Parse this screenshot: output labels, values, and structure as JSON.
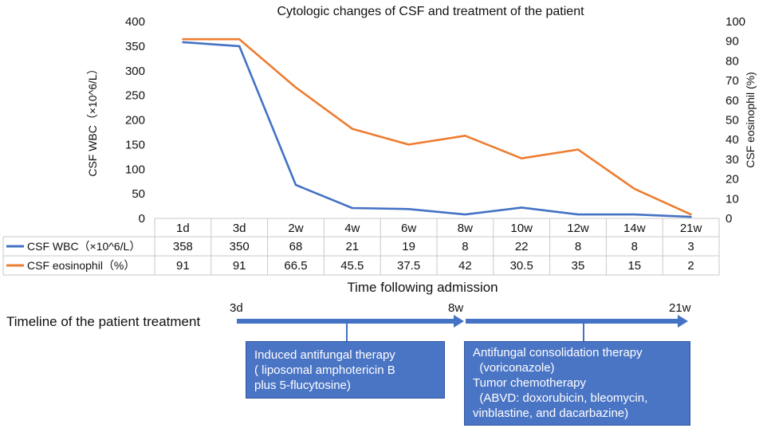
{
  "chart_data": {
    "type": "line",
    "title": "Cytologic changes of CSF and treatment of the patient",
    "xlabel": "Time following admission",
    "categories": [
      "1d",
      "3d",
      "2w",
      "4w",
      "6w",
      "8w",
      "10w",
      "12w",
      "14w",
      "21w"
    ],
    "y_left": {
      "label": "CSF WBC（×10^6/L）",
      "range": [
        0,
        400
      ],
      "ticks": [
        0,
        50,
        100,
        150,
        200,
        250,
        300,
        350,
        400
      ]
    },
    "y_right": {
      "label": "CSF eosinophil (%)",
      "range": [
        0,
        100
      ],
      "ticks": [
        0,
        10,
        20,
        30,
        40,
        50,
        60,
        70,
        80,
        90,
        100
      ]
    },
    "series": [
      {
        "name": "CSF WBC（×10^6/L）",
        "axis": "left",
        "color": "#4472c4",
        "values": [
          358,
          350,
          68,
          21,
          19,
          8,
          22,
          8,
          8,
          3
        ],
        "display": [
          "358",
          "350",
          "68",
          "21",
          "19",
          "8",
          "22",
          "8",
          "8",
          "3"
        ]
      },
      {
        "name": "CSF eosinophil（%）",
        "axis": "right",
        "color": "#ed7d31",
        "values": [
          91,
          91,
          66.5,
          45.5,
          37.5,
          42,
          30.5,
          35,
          15,
          2
        ],
        "display": [
          "91",
          "91",
          "66.5",
          "45.5",
          "37.5",
          "42",
          "30.5",
          "35",
          "15",
          "2"
        ]
      }
    ]
  },
  "timeline": {
    "label": "Timeline of the patient treatment",
    "ticks": [
      "3d",
      "8w",
      "21w"
    ],
    "color": "#4472c4",
    "boxes": [
      {
        "lines": [
          "Induced antifungal therapy",
          "( liposomal amphotericin B",
          "plus 5-flucytosine)"
        ]
      },
      {
        "lines": [
          "Antifungal consolidation therapy",
          "  (voriconazole)",
          "Tumor chemotherapy",
          "  (ABVD: doxorubicin, bleomycin,",
          "vinblastine, and dacarbazine)"
        ]
      }
    ]
  }
}
